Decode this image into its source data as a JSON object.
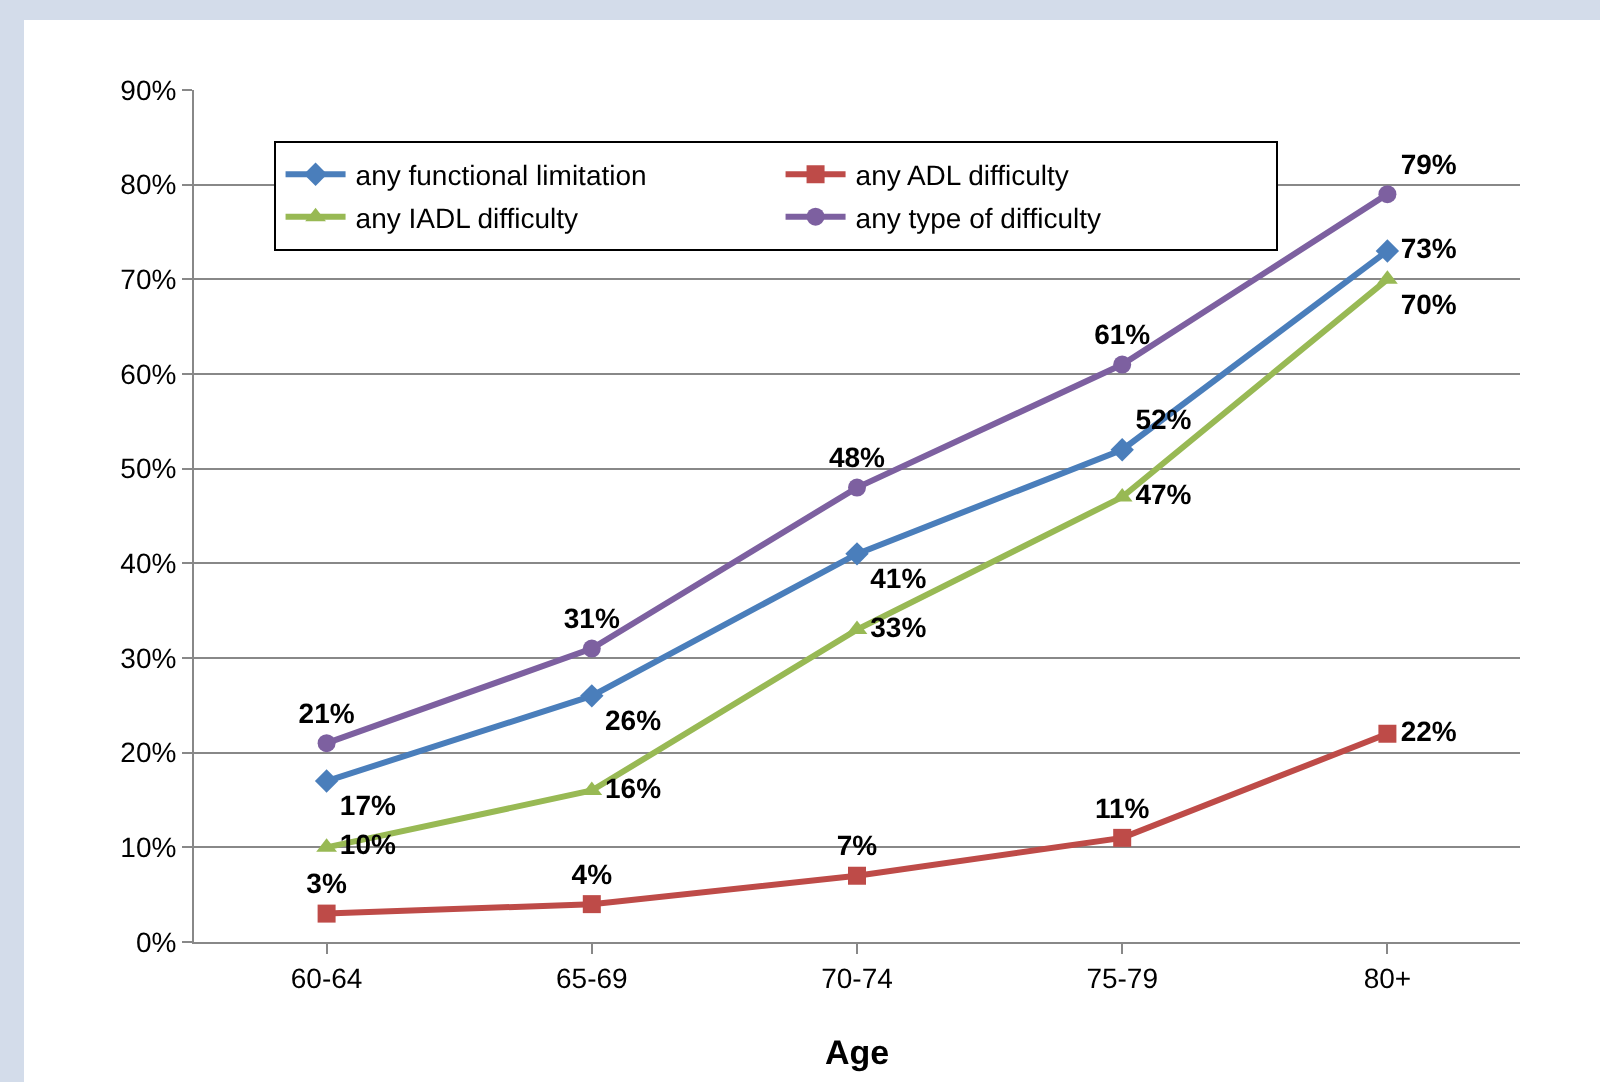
{
  "chart_data": {
    "type": "line",
    "xlabel": "Age",
    "categories": [
      "60-64",
      "65-69",
      "70-74",
      "75-79",
      "80+"
    ],
    "ylim": [
      0,
      90
    ],
    "yticks": [
      {
        "value": 0,
        "label": "0%"
      },
      {
        "value": 10,
        "label": "10%"
      },
      {
        "value": 20,
        "label": "20%"
      },
      {
        "value": 30,
        "label": "30%"
      },
      {
        "value": 40,
        "label": "40%"
      },
      {
        "value": 50,
        "label": "50%"
      },
      {
        "value": 60,
        "label": "60%"
      },
      {
        "value": 70,
        "label": "70%"
      },
      {
        "value": 80,
        "label": "80%"
      },
      {
        "value": 90,
        "label": "90%"
      }
    ],
    "grid": "y",
    "legend": "top left",
    "line_style": "solid",
    "series": [
      {
        "name": "any functional limitation",
        "color": "#4a7ebb",
        "marker": "diamond",
        "values": [
          17,
          26,
          41,
          52,
          73
        ],
        "value_labels": [
          "17%",
          "26%",
          "41%",
          "52%",
          "73%"
        ]
      },
      {
        "name": "any ADL difficulty",
        "color": "#be4b48",
        "marker": "square",
        "values": [
          3,
          4,
          7,
          11,
          22
        ],
        "value_labels": [
          "3%",
          "4%",
          "7%",
          "11%",
          "22%"
        ]
      },
      {
        "name": "any IADL difficulty",
        "color": "#98b954",
        "marker": "triangle",
        "values": [
          10,
          16,
          33,
          47,
          70
        ],
        "value_labels": [
          "10%",
          "16%",
          "33%",
          "47%",
          "70%"
        ]
      },
      {
        "name": "any type of difficulty",
        "color": "#7d60a0",
        "marker": "circle",
        "values": [
          21,
          31,
          48,
          61,
          79
        ],
        "value_labels": [
          "21%",
          "31%",
          "48%",
          "61%",
          "79%"
        ]
      }
    ]
  }
}
